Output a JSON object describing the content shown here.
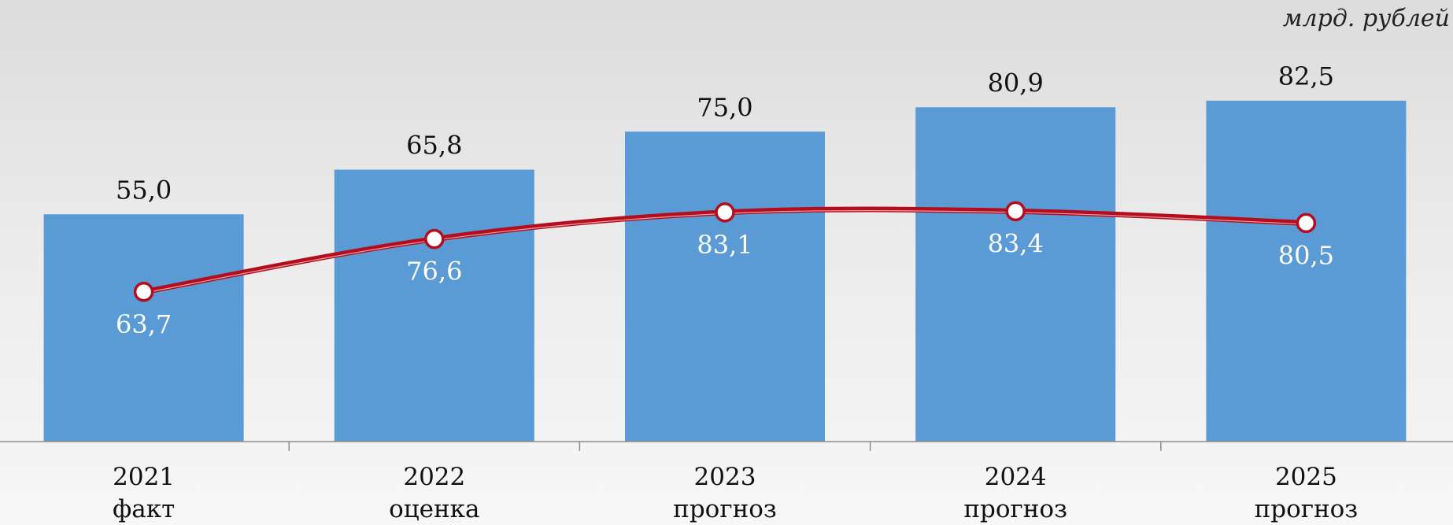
{
  "unit_label": "млрд. рублей",
  "colors": {
    "bar": "#5b9bd5",
    "line": "#b30d1e",
    "marker_fill": "#ffffff",
    "axis": "#8c8c8c"
  },
  "chart_data": {
    "type": "bar",
    "categories": [
      "2021",
      "2022",
      "2023",
      "2024",
      "2025"
    ],
    "category_sublabels": [
      "факт",
      "оценка",
      "прогноз",
      "прогноз",
      "прогноз"
    ],
    "series": [
      {
        "type": "bar",
        "values": [
          55.0,
          65.8,
          75.0,
          80.9,
          82.5
        ],
        "labels": [
          "55,0",
          "65,8",
          "75,0",
          "80,9",
          "82,5"
        ]
      },
      {
        "type": "line",
        "values": [
          63.7,
          76.6,
          83.1,
          83.4,
          80.5
        ],
        "labels": [
          "63,7",
          "76,6",
          "83,1",
          "83,4",
          "80,5"
        ]
      }
    ],
    "ylim": [
      0,
      90
    ],
    "grid": false,
    "legend": "none"
  }
}
